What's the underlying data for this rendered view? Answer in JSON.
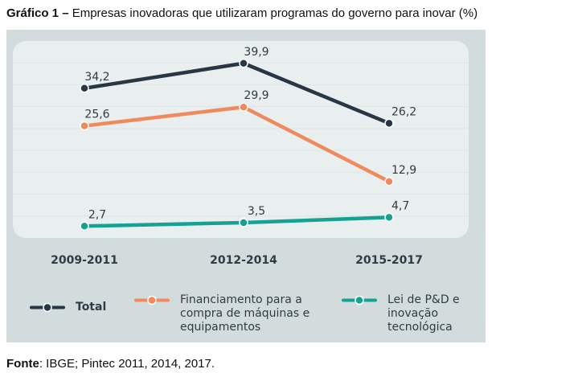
{
  "figure": {
    "title_prefix": "Gráfico 1 –",
    "title_text": "Empresas inovadoras que utilizaram programas do governo para inovar (%)",
    "source_prefix": "Fonte",
    "source_text": ": IBGE; Pintec 2011, 2014, 2017."
  },
  "colors": {
    "panel": "#d3dcdc",
    "plot_area": "#e9eeee",
    "total": "#263746",
    "financiamento": "#f0895c",
    "lei": "#15a294"
  },
  "chart_data": {
    "type": "line",
    "categories": [
      "2009-2011",
      "2012-2014",
      "2015-2017"
    ],
    "series": [
      {
        "name": "Total",
        "values": [
          34.2,
          39.9,
          26.2
        ],
        "labels": [
          "34,2",
          "39,9",
          "26,2"
        ]
      },
      {
        "name": "Financiamento para a\ncompra de máquinas e\nequipamentos",
        "values": [
          25.6,
          29.9,
          12.9
        ],
        "labels": [
          "25,6",
          "29,9",
          "12,9"
        ]
      },
      {
        "name": "Lei de P&D e\ninovação\ntecnológica",
        "values": [
          2.7,
          3.5,
          4.7
        ],
        "labels": [
          "2,7",
          "3,5",
          "4,7"
        ]
      }
    ],
    "title": "Empresas inovadoras que utilizaram programas do governo para inovar (%)",
    "xlabel": "",
    "ylabel": "",
    "ylim": [
      0,
      45
    ],
    "grid": true,
    "legend_position": "bottom"
  }
}
